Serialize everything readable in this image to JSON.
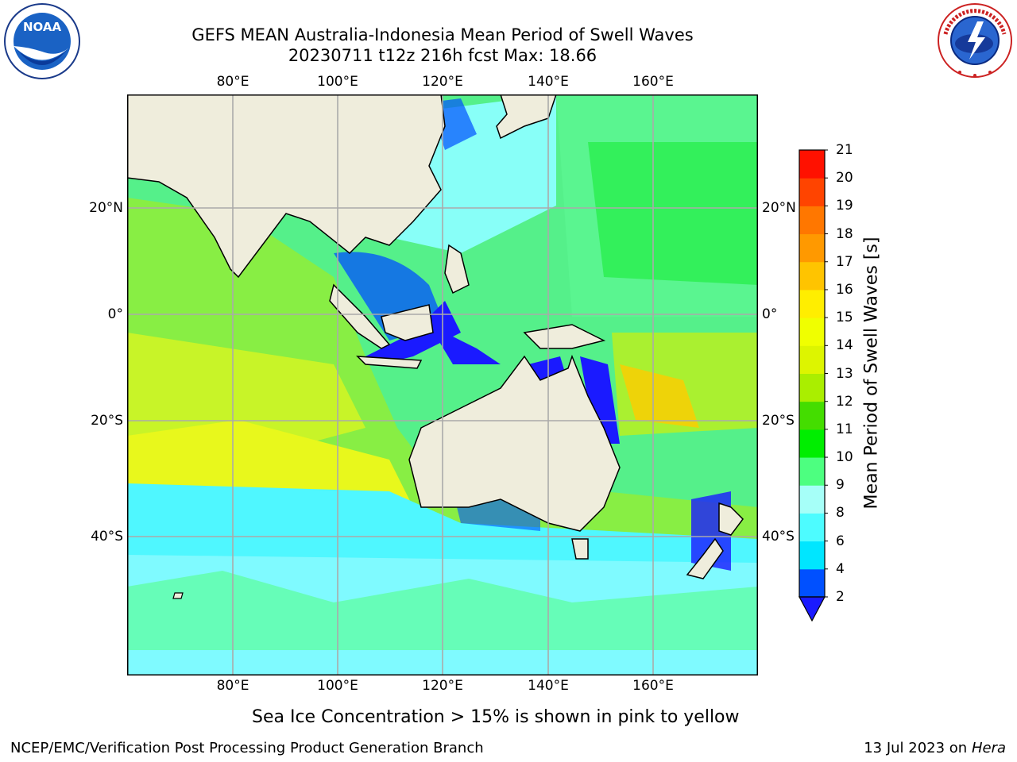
{
  "title": {
    "line1": "GEFS MEAN Australia-Indonesia Mean Period of Swell Waves",
    "line2": "20230711 t12z 216h fcst   Max: 18.66"
  },
  "axes": {
    "lon_ticks": [
      "80°E",
      "100°E",
      "120°E",
      "140°E",
      "160°E"
    ],
    "lat_ticks": [
      "20°N",
      "0°",
      "20°S",
      "40°S"
    ]
  },
  "colorbar": {
    "label": "Mean Period of Swell Waves [s]",
    "ticks": [
      "2",
      "4",
      "6",
      "8",
      "9",
      "10",
      "11",
      "12",
      "13",
      "14",
      "15",
      "16",
      "17",
      "18",
      "19",
      "20",
      "21"
    ],
    "colors": [
      "#0050ff",
      "#00e6ff",
      "#4dfcff",
      "#a6fff8",
      "#4dff80",
      "#00ee00",
      "#44dd00",
      "#aaee00",
      "#ddf500",
      "#f0ff00",
      "#ffee00",
      "#ffc400",
      "#ff9900",
      "#ff7700",
      "#ff4400",
      "#ff1100"
    ],
    "extend_color": "#1a1aff"
  },
  "note": "Sea Ice Concentration > 15% is shown in pink to yellow",
  "footer": {
    "left": "NCEP/EMC/Verification Post Processing Product Generation Branch",
    "right_date": "13 Jul 2023 on ",
    "right_machine": "Hera"
  },
  "logos": {
    "left": "noaa-logo",
    "right": "nws-logo",
    "right_text": "NATIONAL WEATHER SERVICE"
  }
}
